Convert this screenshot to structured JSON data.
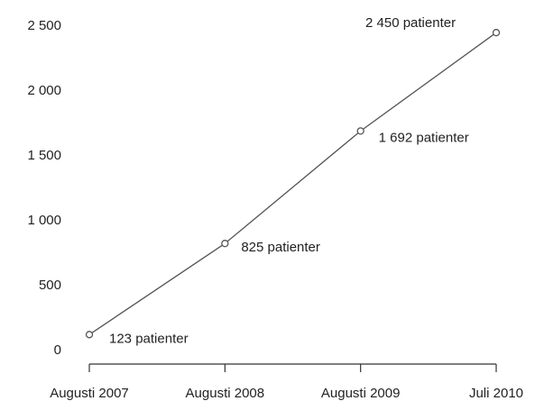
{
  "chart_data": {
    "type": "line",
    "categories": [
      "Augusti 2007",
      "Augusti 2008",
      "Augusti 2009",
      "Juli 2010"
    ],
    "values": [
      123,
      825,
      1692,
      2450
    ],
    "value_labels": [
      "123 patienter",
      "825 patienter",
      "1 692 patienter",
      "2 450 patienter"
    ],
    "color": "#555555",
    "ylim": [
      0,
      2500
    ],
    "yticks": [
      0,
      500,
      {
        "value": 1000,
        "label": "1 000"
      },
      {
        "value": 1500,
        "label": "1 500"
      },
      {
        "value": 2000,
        "label": "2 000"
      },
      {
        "value": 2500,
        "label": "2 500"
      }
    ],
    "grid": false
  }
}
